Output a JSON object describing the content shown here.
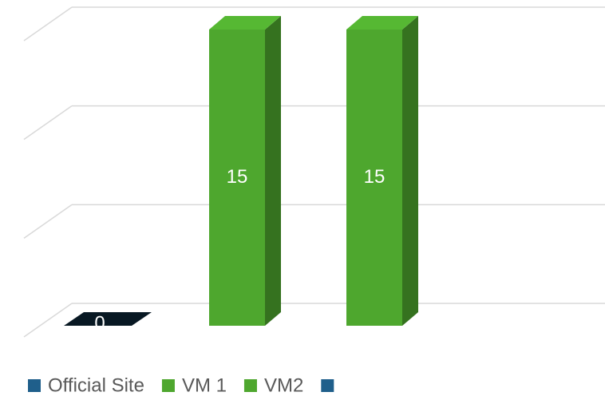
{
  "chart_data": {
    "type": "bar3d",
    "series": [
      {
        "name": "Official Site",
        "color": "#1f5f8b",
        "values": [
          0
        ]
      },
      {
        "name": "VM 1",
        "color": "#4ea72e",
        "values": [
          15
        ]
      },
      {
        "name": "VM2",
        "color": "#4ea72e",
        "values": [
          15
        ]
      },
      {
        "name": null,
        "color": "#1f5f8b",
        "values": [
          null
        ]
      }
    ],
    "ylim": [
      0,
      15
    ],
    "yticks": [
      0,
      5,
      10,
      15
    ],
    "grid": true,
    "legend": "bottom"
  }
}
